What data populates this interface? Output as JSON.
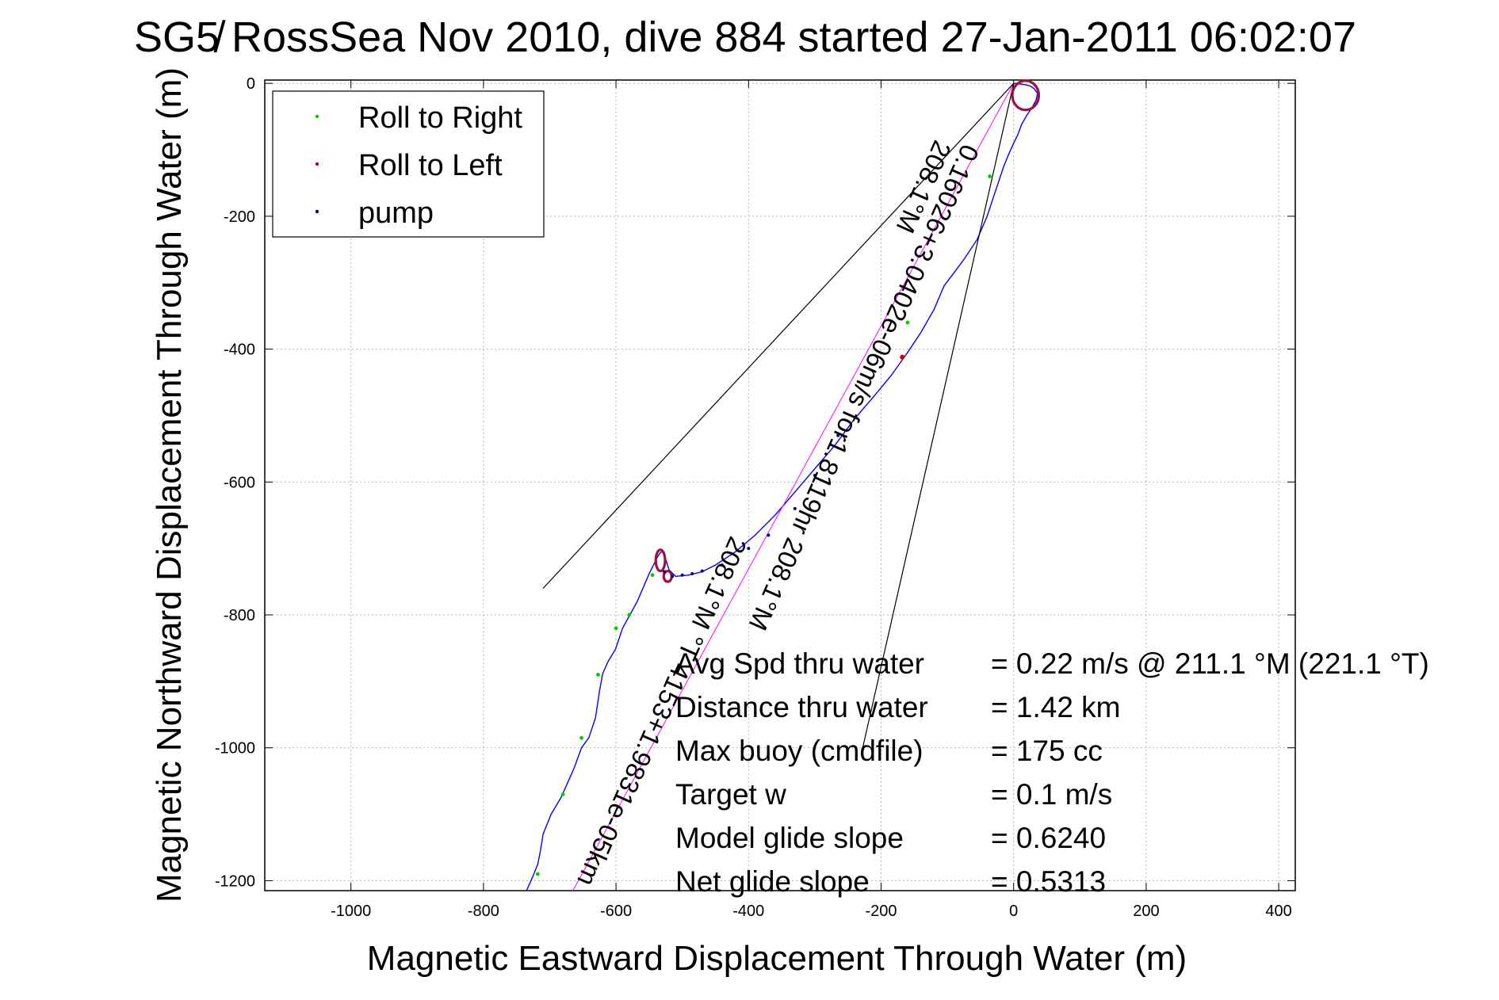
{
  "chart_data": {
    "type": "scatter",
    "title": "SG5̸ RossSea Nov 2010, dive 884 started 27-Jan-2011 06:02:07",
    "xlabel": "Magnetic Eastward Displacement Through Water (m)",
    "ylabel": "Magnetic Northward Displacement Through Water (m)",
    "xlim": [
      -1130,
      425
    ],
    "ylim": [
      -1215,
      5
    ],
    "x_ticks": [
      -1000,
      -800,
      -600,
      -400,
      -200,
      0,
      200,
      400
    ],
    "y_ticks": [
      0,
      -200,
      -400,
      -600,
      -800,
      -1000,
      -1200
    ],
    "x_tick_labels": [
      "-1000",
      "-800",
      "-600",
      "-400",
      "-200",
      "0",
      "200",
      "400"
    ],
    "y_tick_labels": [
      "0",
      "-200",
      "-400",
      "-600",
      "-800",
      "-1000",
      "-1200"
    ],
    "grid": true,
    "legend_position": "top-left",
    "legend": [
      {
        "label": "Roll to Right",
        "color": "#00cc00"
      },
      {
        "label": "Roll to Left",
        "color": "#cc0000"
      },
      {
        "label": "pump",
        "color": "#000080"
      }
    ],
    "colors": {
      "track": "#0000ff",
      "roll_right": "#00cc00",
      "roll_left": "#cc0000",
      "roll_left_dense": "#a0103a",
      "pump": "#000080",
      "model_track": "#ff00ff",
      "cone_lines": "#000000"
    },
    "series": [
      {
        "role": "track",
        "x": [
          -735,
          -726,
          -718,
          -714,
          -710,
          -698,
          -683,
          -674,
          -663,
          -652,
          -641,
          -631,
          -625,
          -620,
          -612,
          -601,
          -590,
          -579,
          -568,
          -556,
          -550,
          -545,
          -540,
          -537,
          -533,
          -530,
          -527,
          -520,
          -510,
          -490,
          -470,
          -450,
          -420,
          -390,
          -360,
          -330,
          -300,
          -270,
          -240,
          -210,
          -185,
          -160,
          -140,
          -120,
          -105,
          -90,
          -75,
          -55,
          -40,
          -30,
          -20,
          -15,
          -8,
          0,
          6,
          12,
          20,
          28,
          34,
          36,
          31,
          25,
          18,
          10,
          2,
          0
        ],
        "y": [
          -1215,
          -1195,
          -1175,
          -1155,
          -1130,
          -1100,
          -1075,
          -1055,
          -1030,
          -1000,
          -985,
          -955,
          -915,
          -888,
          -870,
          -852,
          -820,
          -800,
          -780,
          -752,
          -738,
          -728,
          -718,
          -712,
          -706,
          -705,
          -710,
          -732,
          -742,
          -740,
          -735,
          -725,
          -705,
          -680,
          -650,
          -615,
          -580,
          -545,
          -505,
          -470,
          -440,
          -405,
          -375,
          -340,
          -305,
          -285,
          -265,
          -235,
          -200,
          -170,
          -140,
          -125,
          -108,
          -90,
          -78,
          -62,
          -48,
          -36,
          -25,
          -15,
          -8,
          -4,
          -2,
          -1,
          0,
          0
        ]
      },
      {
        "role": "model_track",
        "x": [
          -665,
          0
        ],
        "y": [
          -1215,
          0
        ]
      },
      {
        "role": "cone_line_left",
        "x": [
          -710,
          0
        ],
        "y": [
          -760,
          0
        ]
      },
      {
        "role": "cone_line_right",
        "x": [
          -230,
          0
        ],
        "y": [
          -1010,
          0
        ]
      },
      {
        "role": "roll_right",
        "name": "Roll to Right",
        "x": [
          -718,
          -680,
          -652,
          -627,
          -600,
          -580,
          -545,
          -160,
          -36
        ],
        "y": [
          -1190,
          -1070,
          -985,
          -890,
          -820,
          -800,
          -740,
          -360,
          -140
        ]
      },
      {
        "role": "roll_left",
        "name": "Roll to Left",
        "x": [
          -168
        ],
        "y": [
          -412
        ]
      },
      {
        "role": "pump",
        "name": "pump",
        "x": [
          -527,
          -515,
          -500,
          -485,
          -470,
          -440,
          -400,
          -370,
          -330,
          -300,
          -265
        ],
        "y": [
          -735,
          -742,
          -740,
          -738,
          -734,
          -725,
          -700,
          -680,
          -640,
          -590,
          -530
        ]
      }
    ],
    "annotations": {
      "rotated_line1": "0.16026+3.0402e-06m/s for1.8119hr 208.1°M",
      "rotated_line2": "208.1°M",
      "rotated_line3": "208.1°M °T 4153+1.9831e-05km",
      "stats_labels": [
        "Avg Spd thru water",
        "Distance thru water",
        "Max buoy (cmdfile)",
        "Target w",
        "Model glide slope",
        "Net glide slope"
      ],
      "stats_values": [
        "=  0.22 m/s @ 211.1 °M (221.1 °T)",
        "=  1.42 km",
        "= 175 cc",
        "= 0.1 m/s",
        "= 0.6240",
        "= 0.5313"
      ]
    }
  }
}
